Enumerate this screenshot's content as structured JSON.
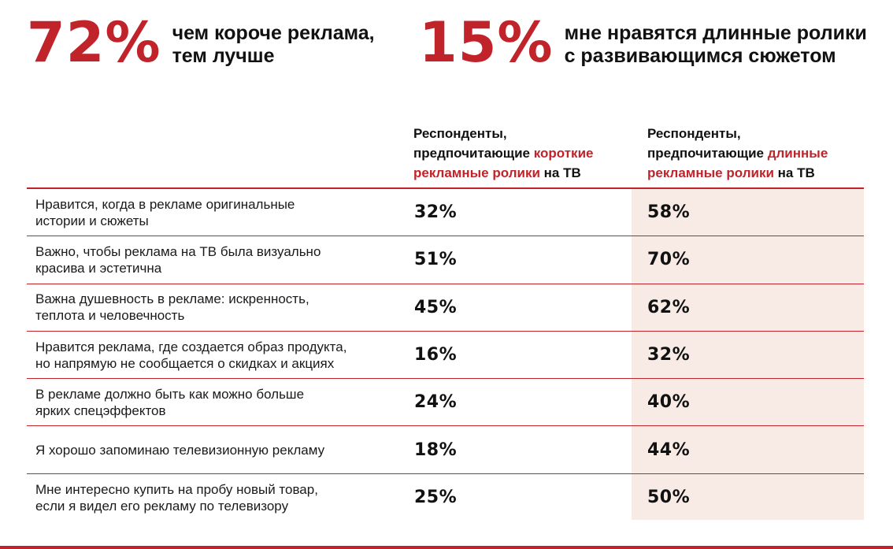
{
  "highlights": [
    {
      "value": "72%",
      "lines": [
        "чем короче реклама,",
        "тем лучше"
      ]
    },
    {
      "value": "15%",
      "lines": [
        "мне нравятся длинные ролики",
        "с развивающимся сюжетом"
      ]
    }
  ],
  "columns": {
    "short": {
      "line1": "Респонденты,",
      "line2_pre": "предпочитающие ",
      "line2_accent": "короткие",
      "line3_accent": "рекламные ролики",
      "line3_post": " на ТВ"
    },
    "long": {
      "line1": "Респонденты,",
      "line2_pre": "предпочитающие ",
      "line2_accent": "длинные",
      "line3_accent": "рекламные ролики",
      "line3_post": " на ТВ"
    }
  },
  "colors": {
    "accent": "#c0232a",
    "long_column_bg": "#f8ebe6",
    "text": "#111111"
  },
  "chart_data": {
    "type": "table",
    "columns": [
      "Респонденты, предпочитающие короткие рекламные ролики на ТВ",
      "Респонденты, предпочитающие длинные рекламные ролики на ТВ"
    ],
    "rows": [
      {
        "label_lines": [
          "Нравится, когда в рекламе оригинальные",
          "истории и сюжеты"
        ],
        "short": "32%",
        "long": "58%"
      },
      {
        "label_lines": [
          "Важно, чтобы реклама на ТВ была визуально",
          "красива и эстетична"
        ],
        "short": "51%",
        "long": "70%"
      },
      {
        "label_lines": [
          "Важна душевность в рекламе: искренность,",
          "теплота и человечность"
        ],
        "short": "45%",
        "long": "62%"
      },
      {
        "label_lines": [
          "Нравится реклама, где создается образ продукта,",
          "но напрямую не сообщается о скидках и акциях"
        ],
        "short": "16%",
        "long": "32%"
      },
      {
        "label_lines": [
          "В рекламе должно быть как можно больше",
          "ярких спецэффектов"
        ],
        "short": "24%",
        "long": "40%"
      },
      {
        "label_lines": [
          "Я хорошо запоминаю телевизионную рекламу"
        ],
        "short": "18%",
        "long": "44%"
      },
      {
        "label_lines": [
          "Мне интересно купить на пробу новый товар,",
          "если я видел его рекламу по телевизору"
        ],
        "short": "25%",
        "long": "50%"
      }
    ]
  }
}
